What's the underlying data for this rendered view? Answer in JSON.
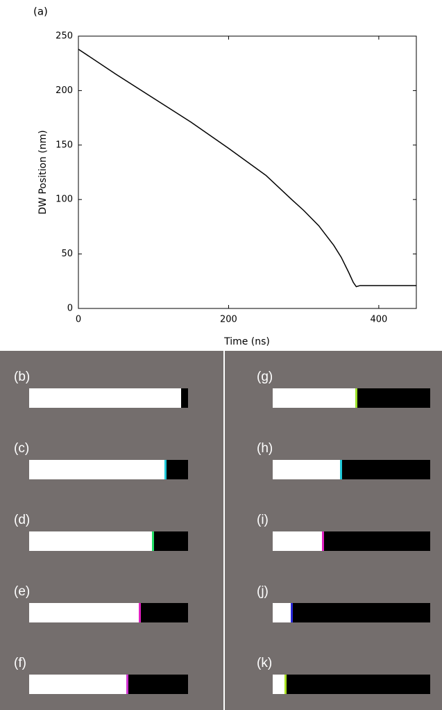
{
  "chart_data": {
    "type": "line",
    "label": "(a)",
    "x_label": "Time (ns)",
    "y_label": "DW Position (nm)",
    "x": [
      0,
      50,
      100,
      150,
      200,
      250,
      284,
      300,
      320,
      340,
      350,
      360,
      366,
      370,
      375,
      450
    ],
    "series": [
      {
        "color": "#000000",
        "values": [
          238,
          215,
          193,
          171,
          147,
          122,
          100,
          90,
          76,
          58,
          47,
          33,
          24,
          20,
          21,
          21
        ]
      }
    ],
    "xlim": [
      0,
      450
    ],
    "xticks": [
      0,
      200,
      400
    ],
    "ylim": [
      0,
      250
    ],
    "yticks": [
      0,
      50,
      100,
      150,
      200,
      250
    ]
  },
  "panels": [
    {
      "label": "(b)"
    },
    {
      "label": "(c)"
    },
    {
      "label": "(d)"
    },
    {
      "label": "(e)"
    },
    {
      "label": "(f)"
    },
    {
      "label": "(g)"
    },
    {
      "label": "(h)"
    },
    {
      "label": "(i)"
    },
    {
      "label": "(j)"
    },
    {
      "label": "(k)"
    }
  ]
}
